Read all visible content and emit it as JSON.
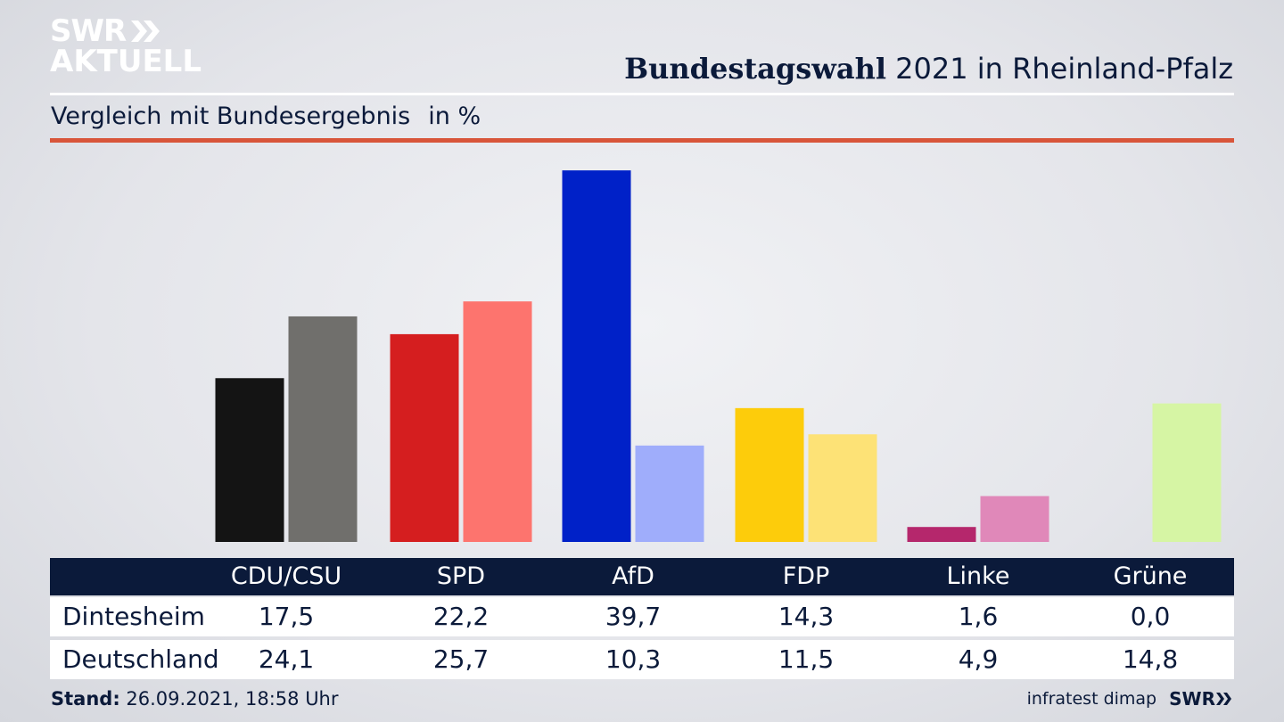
{
  "brand": {
    "line1": "SWR",
    "line2": "AKTUELL",
    "footer_logo": "SWR"
  },
  "header": {
    "title_bold": "Bundestagswahl",
    "title_rest": "2021 in Rheinland-Pfalz"
  },
  "subtitle": {
    "text": "Vergleich mit Bundesergebnis",
    "unit": "in %"
  },
  "chart_data": {
    "type": "bar",
    "title": "Bundestagswahl 2021 in Rheinland-Pfalz",
    "subtitle": "Vergleich mit Bundesergebnis in %",
    "categories": [
      "CDU/CSU",
      "SPD",
      "AfD",
      "FDP",
      "Linke",
      "Grüne"
    ],
    "series": [
      {
        "name": "Dintesheim",
        "values": [
          17.5,
          22.2,
          39.7,
          14.3,
          1.6,
          0.0
        ],
        "colors": [
          "#141414",
          "#d51e1f",
          "#0021c8",
          "#fdcc0b",
          "#b5276c",
          "#8fd14f"
        ]
      },
      {
        "name": "Deutschland",
        "values": [
          24.1,
          25.7,
          10.3,
          11.5,
          4.9,
          14.8
        ],
        "colors": [
          "#706f6c",
          "#fd746e",
          "#9fadfb",
          "#fde276",
          "#e088b9",
          "#d6f5a4"
        ]
      }
    ],
    "ylim": [
      0,
      40
    ],
    "xlabel": "",
    "ylabel": ""
  },
  "table": {
    "rows": [
      {
        "label": "Dintesheim",
        "values": [
          "17,5",
          "22,2",
          "39,7",
          "14,3",
          "1,6",
          "0,0"
        ]
      },
      {
        "label": "Deutschland",
        "values": [
          "24,1",
          "25,7",
          "10,3",
          "11,5",
          "4,9",
          "14,8"
        ]
      }
    ]
  },
  "footer": {
    "stand_label": "Stand:",
    "stand_value": "26.09.2021, 18:58 Uhr",
    "source": "infratest dimap"
  }
}
